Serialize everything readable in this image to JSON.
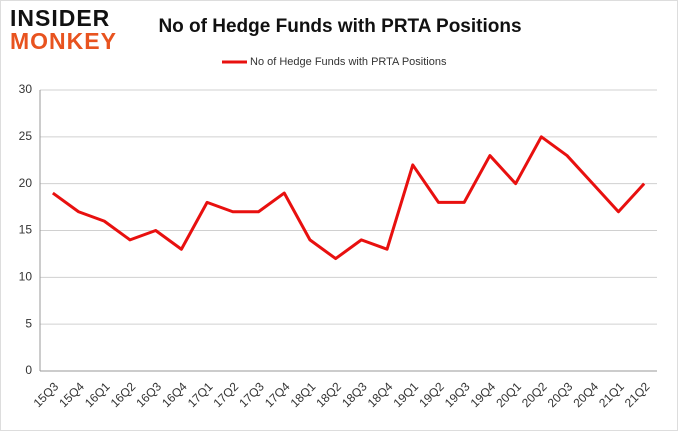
{
  "logo": {
    "line1": "INSIDER",
    "line2": "MONKEY"
  },
  "chart_data": {
    "type": "line",
    "title": "No of Hedge Funds with PRTA Positions",
    "categories": [
      "15Q3",
      "15Q4",
      "16Q1",
      "16Q2",
      "16Q3",
      "16Q4",
      "17Q1",
      "17Q2",
      "17Q3",
      "17Q4",
      "18Q1",
      "18Q2",
      "18Q3",
      "18Q4",
      "19Q1",
      "19Q2",
      "19Q3",
      "19Q4",
      "20Q1",
      "20Q2",
      "20Q3",
      "20Q4",
      "21Q1",
      "21Q2"
    ],
    "series": [
      {
        "name": "No of Hedge Funds with PRTA Positions",
        "color": "#e8100f",
        "values": [
          19,
          17,
          16,
          14,
          15,
          13,
          18,
          17,
          17,
          19,
          14,
          12,
          14,
          13,
          22,
          18,
          18,
          23,
          20,
          25,
          23,
          20,
          17,
          20
        ]
      }
    ],
    "ylim": [
      0,
      30
    ],
    "yticks": [
      0,
      5,
      10,
      15,
      20,
      25,
      30
    ],
    "grid": true,
    "legend": "top"
  }
}
